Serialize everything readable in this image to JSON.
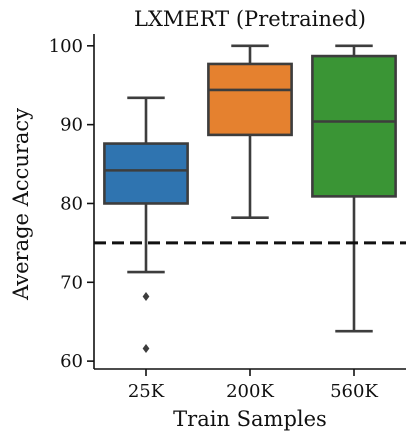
{
  "chart_data": {
    "type": "box",
    "title": "LXMERT (Pretrained)",
    "xlabel": "Train Samples",
    "ylabel": "Average Accuracy",
    "categories": [
      "25K",
      "200K",
      "560K"
    ],
    "ylim": [
      59,
      101.5
    ],
    "yticks": [
      60,
      70,
      80,
      90,
      100
    ],
    "reference_line": {
      "y": 75,
      "style": "dashed"
    },
    "grid": false,
    "boxes": [
      {
        "category": "25K",
        "whisker_low": 71.3,
        "q1": 80.0,
        "median": 84.2,
        "q3": 87.6,
        "whisker_high": 93.4,
        "outliers": [
          68.2,
          61.6
        ],
        "color": "#2f74b0"
      },
      {
        "category": "200K",
        "whisker_low": 78.2,
        "q1": 88.7,
        "median": 94.4,
        "q3": 97.7,
        "whisker_high": 100.0,
        "outliers": [],
        "color": "#e5812f"
      },
      {
        "category": "560K",
        "whisker_low": 63.8,
        "q1": 80.9,
        "median": 90.4,
        "q3": 98.7,
        "whisker_high": 100.0,
        "outliers": [],
        "color": "#3a9535"
      }
    ]
  }
}
